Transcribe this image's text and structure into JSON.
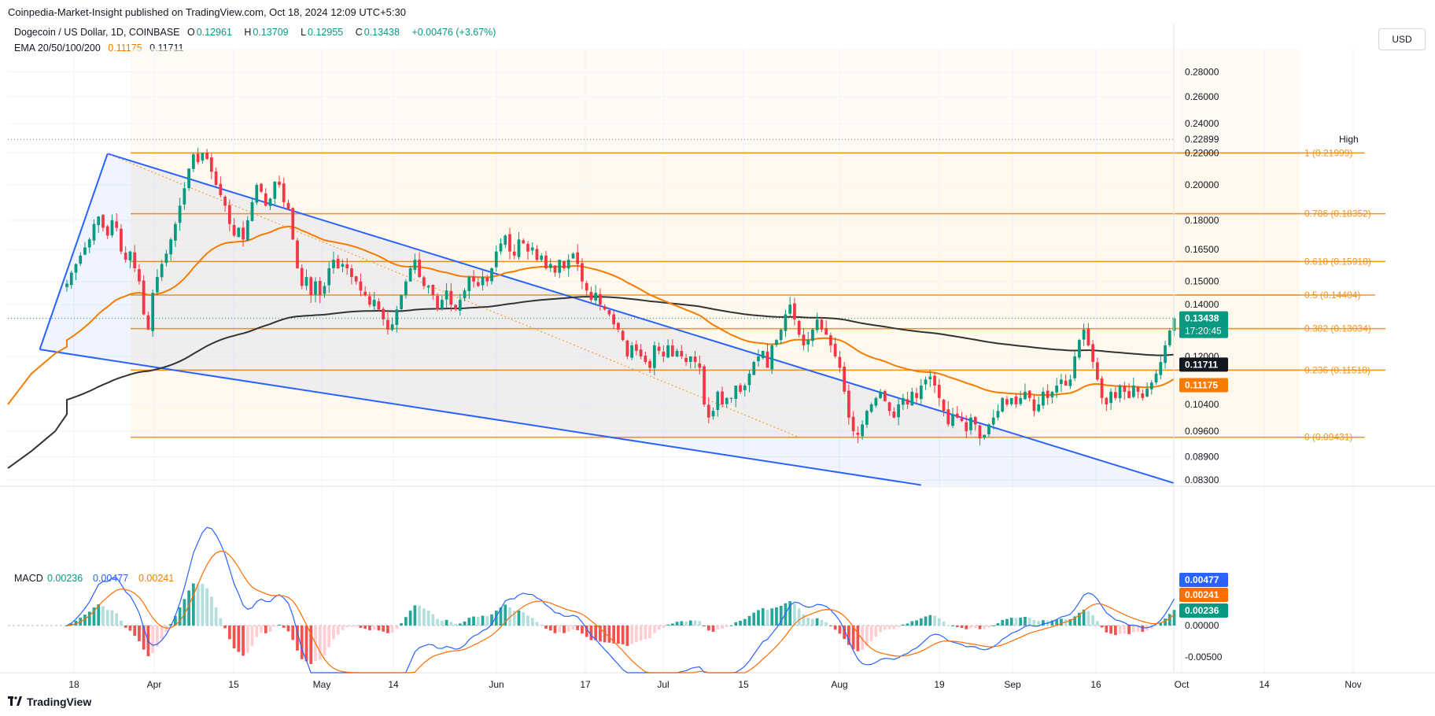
{
  "publisher": "Coinpedia-Market-Insight published on TradingView.com, Oct 18, 2024 12:09 UTC+5:30",
  "header": {
    "symbol": "Dogecoin / US Dollar, 1D, COINBASE",
    "o_label": "O",
    "o_value": "0.12961",
    "h_label": "H",
    "h_value": "0.13709",
    "l_label": "L",
    "l_value": "0.12955",
    "c_label": "C",
    "c_value": "0.13438",
    "change": "+0.00476 (+3.67%)",
    "ema_label": "EMA 20/50/100/200",
    "ema_val1": "0.11175",
    "ema_val2": "0.11711"
  },
  "currency_button": "USD",
  "footer": {
    "brand": "TradingView"
  },
  "colors": {
    "up": "#089981",
    "down": "#f23645",
    "fib": "#f7931a",
    "channel": "#2962ff",
    "ema_orange": "#f57c00",
    "ema_dark": "#333333",
    "macd_line": "#2962ff",
    "signal_line": "#ff6d00",
    "hist_up": "#26a69a",
    "hist_down": "#ef5350"
  },
  "chart_data": {
    "type": "candlestick",
    "title": "Dogecoin / US Dollar, 1D, COINBASE",
    "y_scale": "log",
    "ylim": [
      0.0815,
      0.3
    ],
    "y_ticks": [
      "0.28000",
      "0.26000",
      "0.24000",
      "0.22000",
      "0.20000",
      "0.18000",
      "0.16500",
      "0.15000",
      "0.14000",
      "0.12000",
      "0.10400",
      "0.09600",
      "0.08900",
      "0.08300"
    ],
    "x_ticks": [
      "18",
      "Apr",
      "15",
      "May",
      "14",
      "Jun",
      "17",
      "Jul",
      "15",
      "Aug",
      "19",
      "Sep",
      "16",
      "Oct",
      "14",
      "Nov"
    ],
    "high_label": "High",
    "high_value": "0.22899",
    "current_price": "0.13438",
    "countdown": "17:20:45",
    "ema200_badge": "0.11711",
    "ema50_badge": "0.11175",
    "fib_levels": [
      {
        "ratio": "1",
        "value": 0.21999,
        "label": "1 (0.21999)"
      },
      {
        "ratio": "0.786",
        "value": 0.18352,
        "label": "0.786 (0.18352)"
      },
      {
        "ratio": "0.618",
        "value": 0.15918,
        "label": "0.618 (0.15918)"
      },
      {
        "ratio": "0.5",
        "value": 0.14404,
        "label": "0.5 (0.14404)"
      },
      {
        "ratio": "0.382",
        "value": 0.13034,
        "label": "0.382 (0.13034)"
      },
      {
        "ratio": "0.236",
        "value": 0.11518,
        "label": "0.236 (0.11518)"
      },
      {
        "ratio": "0",
        "value": 0.09431,
        "label": "0 (0.09431)"
      }
    ],
    "channel": {
      "upper": [
        {
          "day": 9,
          "price": 0.2195
        },
        {
          "day": 222,
          "price": 0.0905
        }
      ],
      "lower": [
        {
          "day": -6,
          "price": 0.1225
        },
        {
          "day": 189,
          "price": 0.0818
        }
      ]
    },
    "closes": [
      0.149,
      0.154,
      0.158,
      0.162,
      0.166,
      0.17,
      0.178,
      0.182,
      0.176,
      0.172,
      0.18,
      0.176,
      0.164,
      0.16,
      0.164,
      0.156,
      0.15,
      0.136,
      0.13,
      0.145,
      0.152,
      0.158,
      0.163,
      0.17,
      0.178,
      0.188,
      0.198,
      0.21,
      0.219,
      0.214,
      0.22,
      0.216,
      0.208,
      0.2,
      0.194,
      0.188,
      0.178,
      0.172,
      0.176,
      0.17,
      0.18,
      0.19,
      0.2,
      0.196,
      0.188,
      0.192,
      0.202,
      0.2,
      0.19,
      0.186,
      0.17,
      0.156,
      0.148,
      0.152,
      0.144,
      0.15,
      0.144,
      0.148,
      0.156,
      0.16,
      0.156,
      0.158,
      0.156,
      0.152,
      0.15,
      0.146,
      0.144,
      0.14,
      0.142,
      0.138,
      0.134,
      0.13,
      0.132,
      0.138,
      0.144,
      0.15,
      0.156,
      0.16,
      0.152,
      0.148,
      0.148,
      0.144,
      0.138,
      0.142,
      0.146,
      0.14,
      0.138,
      0.142,
      0.146,
      0.152,
      0.15,
      0.148,
      0.152,
      0.15,
      0.156,
      0.164,
      0.168,
      0.172,
      0.164,
      0.162,
      0.17,
      0.168,
      0.164,
      0.166,
      0.16,
      0.162,
      0.156,
      0.158,
      0.154,
      0.16,
      0.156,
      0.16,
      0.163,
      0.158,
      0.15,
      0.146,
      0.142,
      0.145,
      0.14,
      0.138,
      0.136,
      0.132,
      0.13,
      0.126,
      0.12,
      0.124,
      0.122,
      0.12,
      0.118,
      0.116,
      0.124,
      0.122,
      0.12,
      0.124,
      0.12,
      0.122,
      0.12,
      0.118,
      0.12,
      0.118,
      0.116,
      0.104,
      0.1,
      0.102,
      0.108,
      0.104,
      0.106,
      0.106,
      0.11,
      0.108,
      0.11,
      0.114,
      0.118,
      0.12,
      0.122,
      0.116,
      0.124,
      0.126,
      0.13,
      0.136,
      0.14,
      0.134,
      0.128,
      0.124,
      0.126,
      0.13,
      0.134,
      0.13,
      0.128,
      0.124,
      0.12,
      0.116,
      0.108,
      0.1,
      0.096,
      0.095,
      0.098,
      0.102,
      0.104,
      0.106,
      0.108,
      0.105,
      0.102,
      0.1,
      0.104,
      0.106,
      0.104,
      0.108,
      0.106,
      0.11,
      0.112,
      0.113,
      0.11,
      0.106,
      0.102,
      0.098,
      0.101,
      0.1,
      0.099,
      0.096,
      0.1,
      0.098,
      0.094,
      0.095,
      0.098,
      0.1,
      0.102,
      0.106,
      0.104,
      0.106,
      0.104,
      0.106,
      0.108,
      0.106,
      0.102,
      0.104,
      0.108,
      0.106,
      0.108,
      0.11,
      0.112,
      0.11,
      0.112,
      0.12,
      0.126,
      0.13,
      0.124,
      0.118,
      0.112,
      0.106,
      0.104,
      0.108,
      0.106,
      0.11,
      0.108,
      0.106,
      0.11,
      0.108,
      0.106,
      0.109,
      0.111,
      0.114,
      0.118,
      0.124,
      0.1296,
      0.1344
    ]
  },
  "macd": {
    "label": "MACD",
    "hist_value": "0.00236",
    "macd_value": "0.00477",
    "signal_value": "0.00241",
    "badge_macd": "0.00477",
    "badge_signal": "0.00241",
    "badge_hist": "0.00236",
    "ticks": [
      "0.00000",
      "-0.00500"
    ]
  }
}
